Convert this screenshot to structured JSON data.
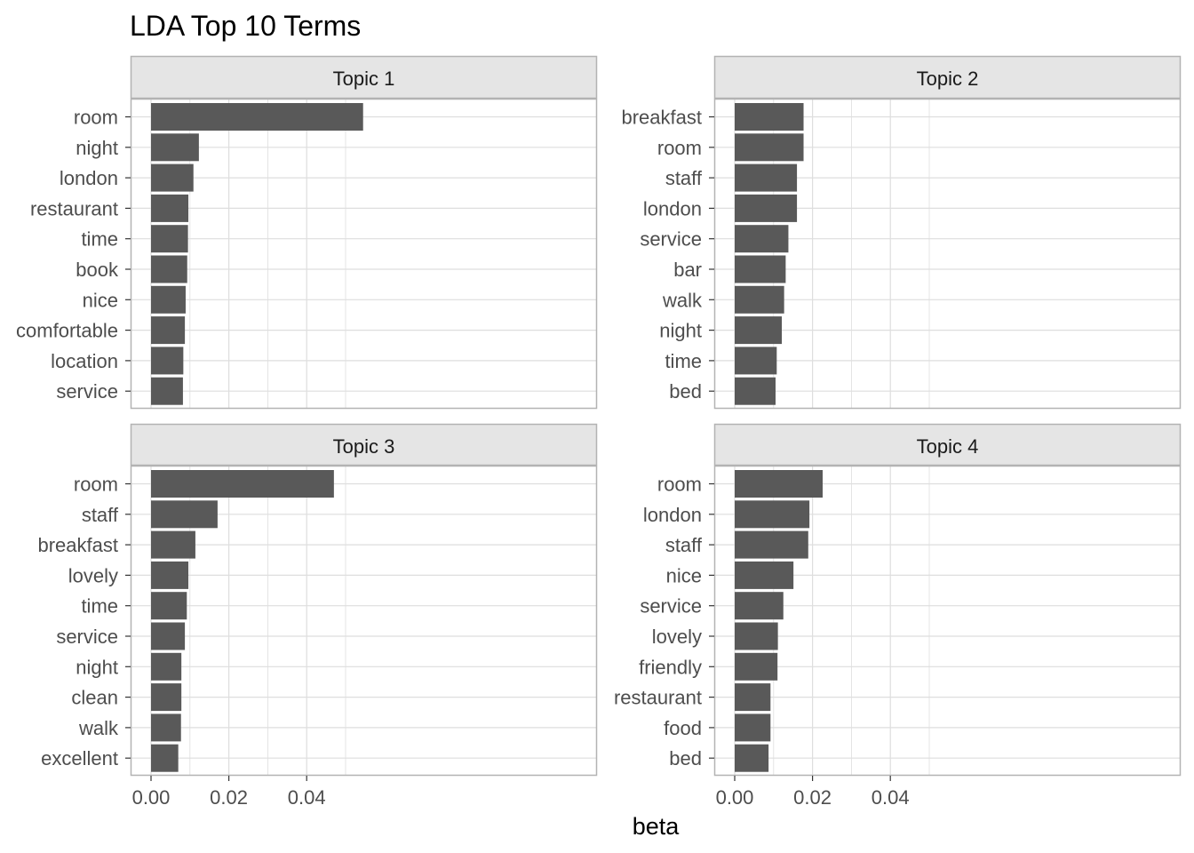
{
  "chart_data": {
    "type": "bar",
    "orientation": "horizontal",
    "title": "LDA Top 10 Terms",
    "xlabel": "beta",
    "ylabel": "",
    "xlim": [
      0,
      0.055
    ],
    "xticks": [
      0,
      0.02,
      0.04
    ],
    "xtick_labels": [
      "0.00",
      "0.02",
      "0.04"
    ],
    "grid": true,
    "legend": "none",
    "colors": {
      "bar": "#595959",
      "strip": "#e5e5e5",
      "panel_border": "#b3b3b3",
      "grid": "#dedede"
    },
    "facets": [
      {
        "label": "Topic 1",
        "categories": [
          "room",
          "night",
          "london",
          "restaurant",
          "time",
          "book",
          "nice",
          "comfortable",
          "location",
          "service"
        ],
        "values": [
          0.0545,
          0.0123,
          0.0109,
          0.0096,
          0.0095,
          0.0093,
          0.0089,
          0.0087,
          0.0083,
          0.0082
        ]
      },
      {
        "label": "Topic 2",
        "categories": [
          "breakfast",
          "room",
          "staff",
          "london",
          "service",
          "bar",
          "walk",
          "night",
          "time",
          "bed"
        ],
        "values": [
          0.0177,
          0.0177,
          0.016,
          0.016,
          0.0138,
          0.0131,
          0.0127,
          0.0121,
          0.0108,
          0.0105
        ]
      },
      {
        "label": "Topic 3",
        "categories": [
          "room",
          "staff",
          "breakfast",
          "lovely",
          "time",
          "service",
          "night",
          "clean",
          "walk",
          "excellent"
        ],
        "values": [
          0.047,
          0.0171,
          0.0114,
          0.0096,
          0.0092,
          0.0087,
          0.0078,
          0.0078,
          0.0077,
          0.007
        ]
      },
      {
        "label": "Topic 4",
        "categories": [
          "room",
          "london",
          "staff",
          "nice",
          "service",
          "lovely",
          "friendly",
          "restaurant",
          "food",
          "bed"
        ],
        "values": [
          0.0226,
          0.0192,
          0.0189,
          0.0151,
          0.0125,
          0.0111,
          0.011,
          0.0092,
          0.0092,
          0.0087
        ]
      }
    ]
  }
}
